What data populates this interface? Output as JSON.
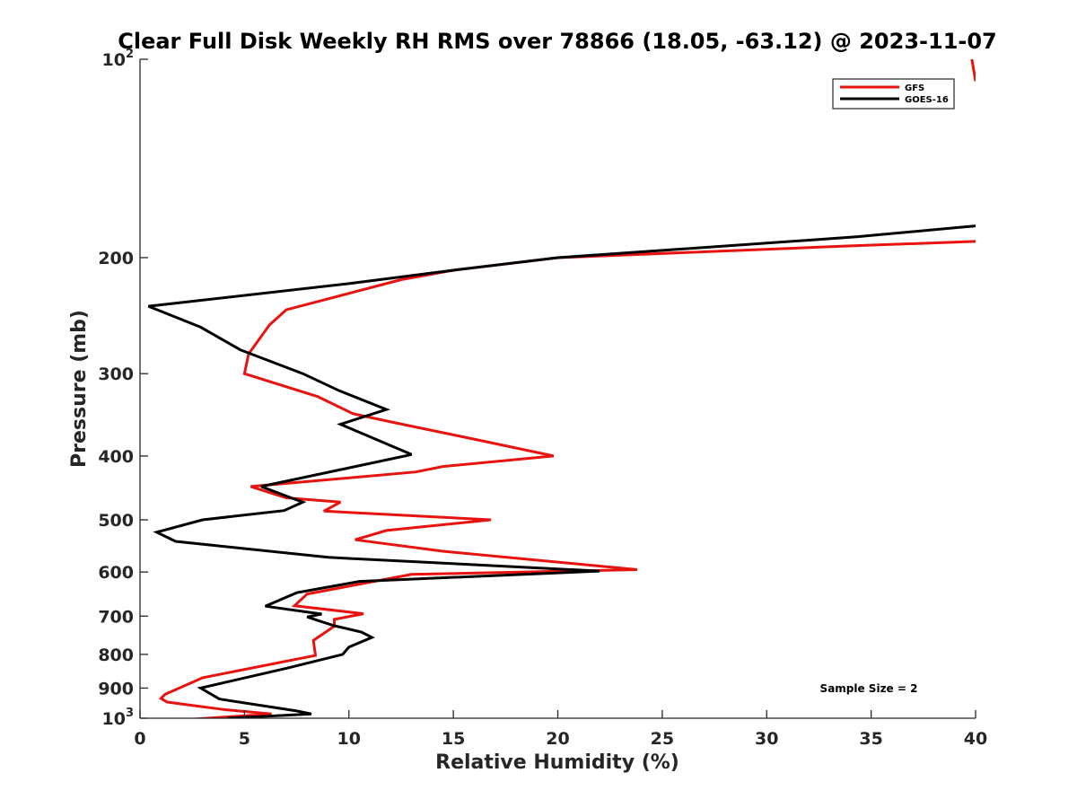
{
  "chart_data": {
    "type": "line",
    "title": "Clear Full Disk Weekly RH RMS over 78866 (18.05, -63.12) @ 2023-11-07",
    "xlabel": "Relative Humidity (%)",
    "ylabel": "Pressure (mb)",
    "xlim": [
      0,
      40
    ],
    "ylim": [
      100,
      1000
    ],
    "y_scale": "log",
    "y_reversed": true,
    "x_ticks": [
      0,
      5,
      10,
      15,
      20,
      25,
      30,
      35,
      40
    ],
    "y_ticks": [
      {
        "value": 100,
        "base": "10",
        "exp": "2"
      },
      {
        "value": 200,
        "label": "200"
      },
      {
        "value": 300,
        "label": "300"
      },
      {
        "value": 400,
        "label": "400"
      },
      {
        "value": 500,
        "label": "500"
      },
      {
        "value": 600,
        "label": "600"
      },
      {
        "value": 700,
        "label": "700"
      },
      {
        "value": 800,
        "label": "800"
      },
      {
        "value": 900,
        "label": "900"
      },
      {
        "value": 1000,
        "base": "10",
        "exp": "3"
      }
    ],
    "legend_position": "top-right",
    "annotation": "Sample Size = 2",
    "series": [
      {
        "name": "GFS",
        "color": "#e8130f",
        "segments": [
          [
            [
              39.0,
              70
            ],
            [
              40.0,
              108
            ]
          ],
          [
            [
              40.0,
              189
            ],
            [
              34.0,
              192
            ],
            [
              20.0,
              200
            ],
            [
              15.0,
              209
            ],
            [
              12.5,
              216
            ],
            [
              7.0,
              240
            ],
            [
              6.2,
              253
            ],
            [
              5.2,
              280
            ],
            [
              5.0,
              300
            ],
            [
              8.5,
              325
            ],
            [
              10.2,
              345
            ],
            [
              12.0,
              355
            ],
            [
              16.5,
              380
            ],
            [
              19.8,
              400
            ],
            [
              14.5,
              415
            ],
            [
              13.2,
              423
            ],
            [
              5.3,
              445
            ],
            [
              7.0,
              463
            ],
            [
              9.6,
              470
            ],
            [
              8.8,
              485
            ],
            [
              16.8,
              500
            ],
            [
              11.8,
              519
            ],
            [
              10.3,
              536
            ],
            [
              14.5,
              558
            ],
            [
              23.8,
              595
            ],
            [
              13.0,
              605
            ],
            [
              8.0,
              648
            ],
            [
              7.4,
              675
            ],
            [
              10.7,
              694
            ],
            [
              9.3,
              708
            ],
            [
              9.3,
              725
            ],
            [
              8.3,
              762
            ],
            [
              8.4,
              803
            ],
            [
              3.0,
              868
            ],
            [
              1.2,
              920
            ],
            [
              1.0,
              933
            ],
            [
              1.3,
              945
            ],
            [
              4.0,
              970
            ],
            [
              6.3,
              985
            ],
            [
              2.2,
              1005
            ],
            [
              2.2,
              1022
            ],
            [
              4.0,
              1022
            ]
          ]
        ]
      },
      {
        "name": "GOES-16",
        "color": "#000000",
        "segments": [
          [
            [
              40.0,
              179
            ],
            [
              34.3,
              186
            ],
            [
              20.0,
              200
            ],
            [
              15.0,
              209
            ],
            [
              10.0,
              219
            ],
            [
              0.4,
              237
            ],
            [
              2.9,
              255
            ],
            [
              4.8,
              276
            ],
            [
              7.8,
              300
            ],
            [
              9.5,
              318
            ],
            [
              11.8,
              340
            ],
            [
              9.6,
              358
            ],
            [
              13.0,
              398
            ],
            [
              5.8,
              445
            ],
            [
              7.0,
              460
            ],
            [
              7.8,
              470
            ],
            [
              6.9,
              484
            ],
            [
              3.0,
              500
            ],
            [
              0.8,
              522
            ],
            [
              1.7,
              539
            ],
            [
              9.0,
              570
            ],
            [
              22.0,
              598
            ],
            [
              10.5,
              620
            ],
            [
              7.5,
              645
            ],
            [
              6.0,
              676
            ],
            [
              8.7,
              695
            ],
            [
              8.0,
              702
            ],
            [
              9.3,
              724
            ],
            [
              10.6,
              740
            ],
            [
              11.1,
              754
            ],
            [
              10.0,
              780
            ],
            [
              9.7,
              800
            ],
            [
              7.0,
              840
            ],
            [
              2.9,
              900
            ],
            [
              3.8,
              935
            ],
            [
              7.5,
              975
            ],
            [
              8.2,
              985
            ],
            [
              4.2,
              1000
            ],
            [
              7.8,
              1015
            ]
          ]
        ]
      }
    ]
  }
}
